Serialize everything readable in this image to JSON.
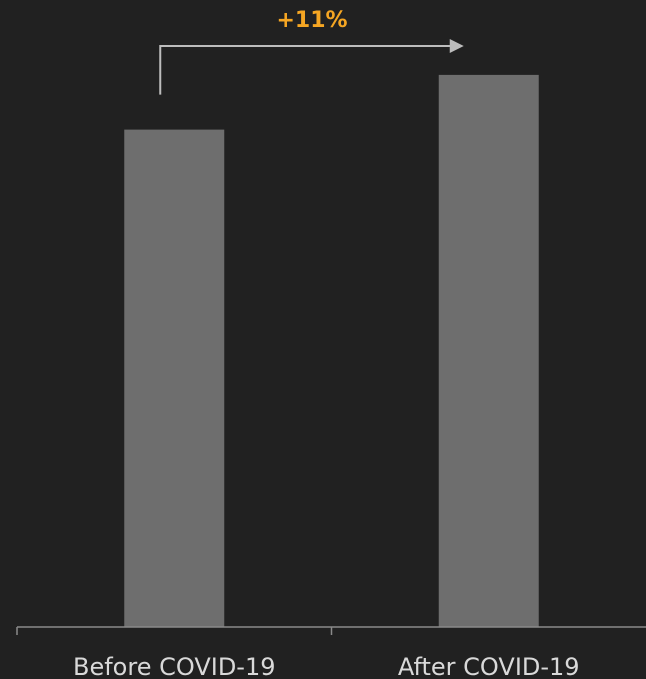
{
  "chart_data": {
    "type": "bar",
    "categories": [
      "Before COVID-19",
      "After COVID-19"
    ],
    "values": [
      100,
      111
    ],
    "ylim": [
      0,
      115
    ],
    "title": "",
    "xlabel": "",
    "ylabel": "",
    "grid": false,
    "legend": "none",
    "annotation": {
      "text": "+11%",
      "from": "Before COVID-19",
      "to": "After COVID-19"
    }
  },
  "colors": {
    "background": "#212121",
    "bar": "#6e6e6e",
    "axis": "#8a8a8a",
    "arrow": "#bdbdbd",
    "label_text": "#d9d9d9",
    "annotation_text": "#f5a623"
  }
}
